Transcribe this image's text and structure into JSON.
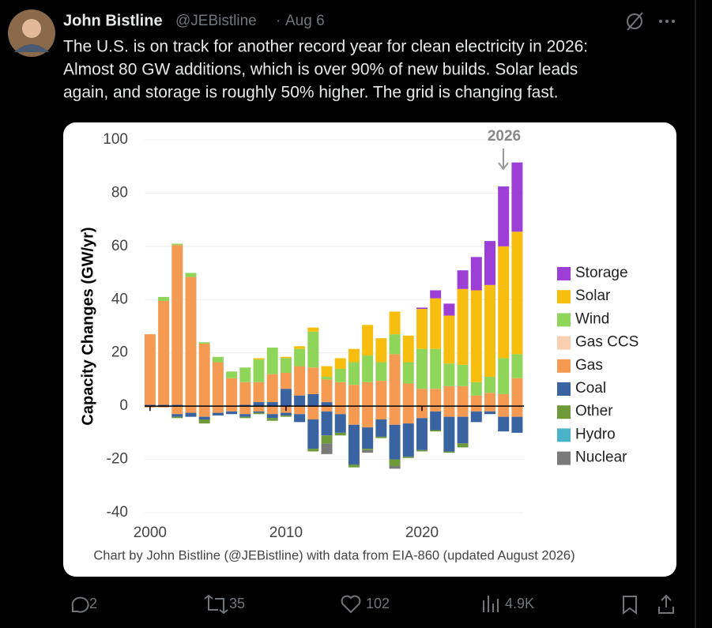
{
  "tweet": {
    "name": "John Bistline",
    "handle": "@JEBistline",
    "date": "Aug 6",
    "text_lines": [
      "The U.S. is on track for another record year for clean electricity in 2026:",
      "Almost 80 GW additions, which is over 90% of new builds. Solar leads",
      "again, and storage is roughly 50% higher. The grid is changing fast."
    ],
    "replies": 2,
    "reposts": 35,
    "likes": 102,
    "views": "4.9K"
  },
  "chart_data": {
    "type": "bar",
    "stacked": true,
    "y_label": "Capacity Changes (GW/yr)",
    "annotation": "2026",
    "caption": "Chart by John Bistline (@JEBistline) with data from EIA-860 (updated August 2026)",
    "x": [
      2000,
      2001,
      2002,
      2003,
      2004,
      2005,
      2006,
      2007,
      2008,
      2009,
      2010,
      2011,
      2012,
      2013,
      2014,
      2015,
      2016,
      2017,
      2018,
      2019,
      2020,
      2021,
      2022,
      2023,
      2024,
      2025,
      2026,
      2027
    ],
    "xlim": [
      1999.6,
      2027.5
    ],
    "xticks": [
      2000,
      2010,
      2020
    ],
    "ylim": [
      -40,
      100
    ],
    "yticks": [
      -40,
      -20,
      0,
      20,
      40,
      60,
      80,
      100
    ],
    "grid": true,
    "series": [
      {
        "name": "Storage",
        "color": "#9b3fd6",
        "additions": [
          0,
          0,
          0,
          0,
          0,
          0,
          0,
          0,
          0,
          0,
          0,
          0,
          0,
          0,
          0,
          0,
          0,
          0,
          0,
          0,
          0.5,
          3,
          4.5,
          7,
          12.5,
          16.5,
          22.5,
          26
        ],
        "retirements": [
          0,
          0,
          0,
          0,
          0,
          0,
          0,
          0,
          0,
          0,
          0,
          0,
          0,
          0,
          0,
          0,
          0,
          0,
          0,
          0,
          0,
          0,
          0,
          0,
          0,
          0,
          0,
          0
        ]
      },
      {
        "name": "Solar",
        "color": "#f7bd0f",
        "additions": [
          0,
          0,
          0,
          0,
          0,
          0,
          0,
          0,
          0.5,
          0,
          0.5,
          1,
          1.5,
          4,
          4,
          5,
          11.5,
          9,
          8.5,
          10,
          15,
          19,
          18,
          28.5,
          34.5,
          34.5,
          42,
          46
        ],
        "retirements": [
          0,
          0,
          0,
          0,
          0,
          0,
          0,
          0,
          0,
          0,
          0,
          0,
          0,
          0,
          0,
          0,
          0,
          0,
          0,
          0,
          0,
          0,
          0,
          0,
          0,
          0,
          0,
          0
        ]
      },
      {
        "name": "Wind",
        "color": "#8ed55a",
        "additions": [
          0,
          1.5,
          0.5,
          1.5,
          0.5,
          2,
          2.5,
          5.5,
          8.5,
          10,
          5.5,
          6.5,
          13.5,
          1,
          5,
          8.5,
          10,
          7,
          7.5,
          8,
          15,
          15,
          8.5,
          8,
          5,
          6,
          13.5,
          9
        ],
        "retirements": [
          0,
          0,
          0,
          0,
          0,
          0,
          0,
          0,
          0,
          0,
          0,
          0,
          0,
          0,
          0,
          0,
          0,
          0,
          0,
          0,
          0,
          0,
          0,
          0,
          0,
          0,
          0,
          0
        ]
      },
      {
        "name": "Gas CCS",
        "color": "#f8cfb0",
        "additions": [
          0,
          0,
          0,
          0,
          0,
          0,
          0,
          0,
          0,
          0,
          0,
          0,
          0,
          0,
          0,
          0,
          0,
          0,
          0,
          0,
          0,
          0,
          0,
          0,
          0,
          0,
          0,
          0
        ],
        "retirements": [
          0,
          0,
          0,
          0,
          0,
          0,
          0,
          0,
          0,
          0,
          0,
          0,
          0,
          0,
          0,
          0,
          0,
          0,
          0,
          0,
          0,
          0,
          0,
          0,
          0,
          0,
          0,
          0
        ]
      },
      {
        "name": "Gas",
        "color": "#f59a52",
        "additions": [
          26.5,
          39,
          60,
          48.5,
          23.5,
          16.5,
          10.5,
          8.5,
          7.5,
          10.5,
          6,
          11,
          10,
          8.5,
          9,
          8,
          9,
          9.5,
          19.5,
          8.5,
          6.5,
          6.5,
          7.5,
          7.5,
          4,
          5,
          4.5,
          10.5
        ],
        "retirements": [
          -0.5,
          -0.5,
          -3,
          -2.5,
          -4,
          -2.5,
          -2,
          -3,
          -2,
          -3,
          -2.5,
          -3,
          -5,
          -2,
          -3,
          -7,
          -8,
          -5,
          -7,
          -6.5,
          -4.5,
          -2,
          -4,
          -4,
          -2,
          -2,
          -4,
          -4
        ]
      },
      {
        "name": "Coal",
        "color": "#3a63a1",
        "additions": [
          0.5,
          0.5,
          0.5,
          0,
          0,
          0,
          0,
          0.5,
          1.5,
          1.5,
          6.5,
          4,
          4.5,
          1.5,
          0,
          0,
          0,
          0,
          0,
          0,
          0,
          0,
          0,
          0,
          0,
          0,
          0,
          0
        ],
        "retirements": [
          0,
          0,
          -1,
          -1.5,
          -1,
          -1,
          -1,
          -1,
          -0.5,
          -1.5,
          -1,
          -3,
          -11,
          -9,
          -7,
          -15,
          -8,
          -6.5,
          -13,
          -12.5,
          -12,
          -7,
          -13,
          -10,
          -4,
          -1,
          -5.5,
          -6
        ]
      },
      {
        "name": "Other",
        "color": "#6f9a3a",
        "additions": [
          0,
          0,
          0,
          0,
          0,
          0,
          0,
          0,
          0,
          0,
          0,
          0,
          0,
          0,
          0,
          0,
          0,
          0,
          0,
          0,
          0,
          0,
          0,
          0,
          0,
          0,
          0,
          0
        ],
        "retirements": [
          0,
          0,
          -0.5,
          0,
          -1.5,
          0,
          0,
          -0.5,
          -0.5,
          -1,
          -0.5,
          0,
          -1,
          -3,
          -1,
          -1,
          -0.5,
          -0.5,
          -2.5,
          -0.5,
          -0.5,
          -0.5,
          -0.5,
          -1.5,
          0,
          0,
          0,
          0
        ]
      },
      {
        "name": "Hydro",
        "color": "#4ab3c9",
        "additions": [
          0,
          0,
          0,
          0,
          0,
          0,
          0,
          0,
          0,
          0,
          0,
          0,
          0,
          0,
          0,
          0,
          0,
          0,
          0,
          0,
          0,
          0,
          0,
          0,
          0,
          0,
          0,
          0
        ],
        "retirements": [
          0,
          0,
          0,
          0,
          0,
          0,
          0,
          0,
          0,
          0,
          0,
          0,
          0,
          0,
          0,
          0,
          0,
          0,
          0,
          0,
          0,
          0,
          0,
          0,
          0,
          0,
          0,
          0
        ]
      },
      {
        "name": "Nuclear",
        "color": "#7a7a7a",
        "additions": [
          0,
          0,
          0,
          0,
          0,
          0,
          0,
          0,
          0,
          0,
          0,
          0,
          0,
          0,
          0,
          0,
          0,
          0,
          0,
          0,
          0,
          0,
          0,
          0,
          0,
          0,
          0,
          0
        ],
        "retirements": [
          0,
          0,
          0,
          0,
          0,
          0,
          0,
          0,
          0,
          0,
          0,
          0,
          0,
          -4,
          0,
          0,
          -1,
          0,
          -1,
          0,
          0,
          0,
          0,
          0,
          0,
          0,
          0,
          0
        ]
      }
    ]
  }
}
